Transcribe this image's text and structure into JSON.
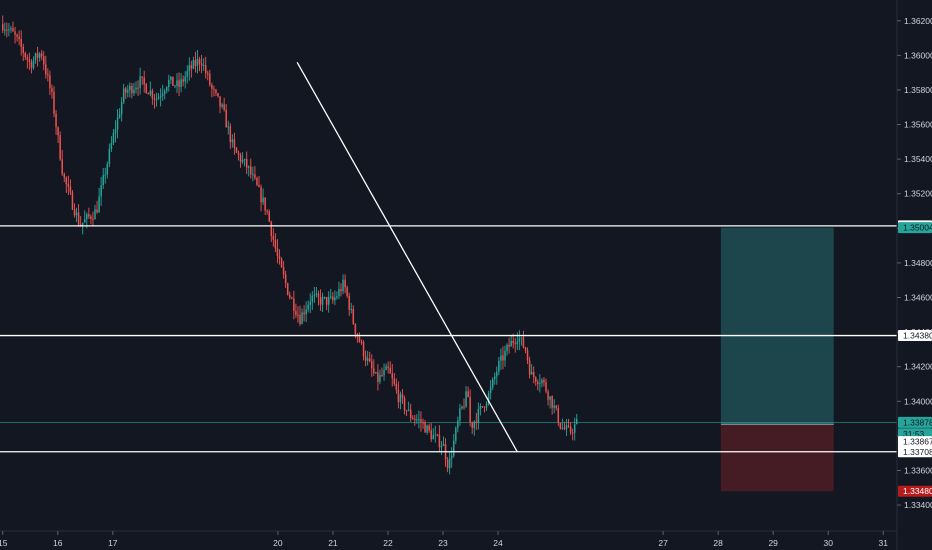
{
  "chart_data": {
    "type": "candlestick",
    "colors": {
      "background": "#131722",
      "up": "#26a69a",
      "down": "#ef5350",
      "level_line": "#ffffff",
      "target_zone": "#1e4f52",
      "stop_zone": "#4f1d25",
      "text": "#d1d4dc",
      "axis_line": "#2a2e39"
    },
    "ylim": [
      1.3325,
      1.3632
    ],
    "y_ticks": [
      "1.33400",
      "1.33600",
      "1.33800",
      "1.34000",
      "1.34200",
      "1.34400",
      "1.34600",
      "1.34800",
      "1.35000",
      "1.35200",
      "1.35400",
      "1.35600",
      "1.35800",
      "1.36000",
      "1.36200"
    ],
    "x_domain": [
      14.95,
      31.25
    ],
    "x_ticks": [
      {
        "value": 15,
        "label": "15"
      },
      {
        "value": 16,
        "label": "16"
      },
      {
        "value": 17,
        "label": "17"
      },
      {
        "value": 20,
        "label": "20"
      },
      {
        "value": 21,
        "label": "21"
      },
      {
        "value": 22,
        "label": "22"
      },
      {
        "value": 23,
        "label": "23"
      },
      {
        "value": 24,
        "label": "24"
      },
      {
        "value": 27,
        "label": "27"
      },
      {
        "value": 28,
        "label": "28"
      },
      {
        "value": 29,
        "label": "29"
      },
      {
        "value": 30,
        "label": "30"
      },
      {
        "value": 31,
        "label": "31"
      }
    ],
    "key_points": [
      [
        15.0,
        1.3618
      ],
      [
        15.2,
        1.3612
      ],
      [
        15.5,
        1.3595
      ],
      [
        15.7,
        1.3602
      ],
      [
        15.9,
        1.3575
      ],
      [
        16.1,
        1.353
      ],
      [
        16.4,
        1.3502
      ],
      [
        16.7,
        1.351
      ],
      [
        17.0,
        1.3552
      ],
      [
        17.2,
        1.3578
      ],
      [
        17.5,
        1.3585
      ],
      [
        17.8,
        1.3575
      ],
      [
        18.0,
        1.3585
      ],
      [
        18.2,
        1.3582
      ],
      [
        18.4,
        1.3592
      ],
      [
        18.6,
        1.3598
      ],
      [
        18.8,
        1.358
      ],
      [
        19.0,
        1.3568
      ],
      [
        19.2,
        1.3545
      ],
      [
        19.45,
        1.3535
      ],
      [
        19.6,
        1.3525
      ],
      [
        19.8,
        1.351
      ],
      [
        20.0,
        1.3482
      ],
      [
        20.2,
        1.3462
      ],
      [
        20.4,
        1.3448
      ],
      [
        20.6,
        1.346
      ],
      [
        20.8,
        1.3458
      ],
      [
        21.0,
        1.3458
      ],
      [
        21.2,
        1.3468
      ],
      [
        21.4,
        1.3442
      ],
      [
        21.6,
        1.3425
      ],
      [
        21.8,
        1.3412
      ],
      [
        22.0,
        1.3418
      ],
      [
        22.2,
        1.3402
      ],
      [
        22.4,
        1.3392
      ],
      [
        22.6,
        1.3388
      ],
      [
        22.8,
        1.338
      ],
      [
        23.0,
        1.3375
      ],
      [
        23.1,
        1.3362
      ],
      [
        23.3,
        1.3392
      ],
      [
        23.45,
        1.3405
      ],
      [
        23.5,
        1.3385
      ],
      [
        23.7,
        1.3396
      ],
      [
        23.85,
        1.3405
      ],
      [
        24.0,
        1.342
      ],
      [
        24.2,
        1.3432
      ],
      [
        24.35,
        1.3438
      ],
      [
        24.5,
        1.343
      ],
      [
        24.6,
        1.3415
      ],
      [
        24.8,
        1.3412
      ],
      [
        25.0,
        1.3398
      ],
      [
        25.15,
        1.3385
      ],
      [
        25.3,
        1.3382
      ],
      [
        25.45,
        1.3388
      ]
    ],
    "lines": [
      {
        "type": "horizontal",
        "price": 1.35014,
        "label": "1.35014"
      },
      {
        "type": "horizontal",
        "price": 1.3438,
        "label": "1.34380"
      },
      {
        "type": "horizontal",
        "price": 1.33708,
        "label": "1.33708"
      },
      {
        "type": "trendline",
        "from": [
          20.35,
          1.3596
        ],
        "to": [
          24.35,
          1.33708
        ]
      }
    ],
    "position_box": {
      "x_start": 28.05,
      "x_end": 30.1,
      "entry": 1.33867,
      "target": 1.35004,
      "stop": 1.3348
    },
    "price_badges": [
      {
        "price": 1.35014,
        "label": "1.35014",
        "bg": "#ffffff",
        "color": "#131722"
      },
      {
        "price": 1.35004,
        "label": "1.35004",
        "bg": "#26a69a",
        "color": "#131722"
      },
      {
        "price": 1.3438,
        "label": "1.34380",
        "bg": "#ffffff",
        "color": "#131722"
      },
      {
        "price": 1.33878,
        "label": "1.33878",
        "bg": "#26a69a",
        "color": "#131722"
      },
      {
        "price": 1.33812,
        "label": "31:53",
        "bg": "#26a69a",
        "color": "#131722"
      },
      {
        "price": 1.33767,
        "label": "1.33867",
        "bg": "#ffffff",
        "color": "#131722"
      },
      {
        "price": 1.33708,
        "label": "1.33708",
        "bg": "#ffffff",
        "color": "#131722"
      },
      {
        "price": 1.3348,
        "label": "1.33480",
        "bg": "#b71c1c",
        "color": "#ffffff"
      }
    ]
  }
}
